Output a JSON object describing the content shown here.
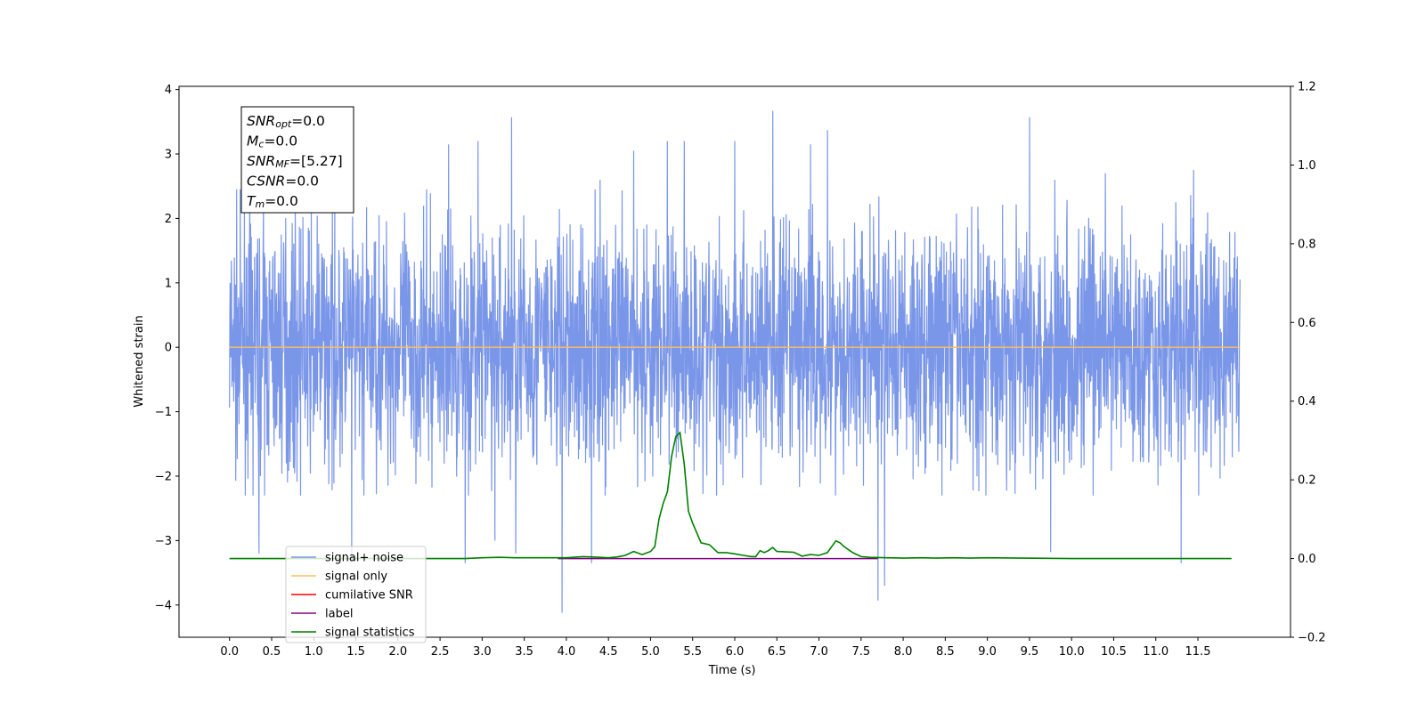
{
  "chart_data": {
    "type": "line",
    "xlabel": "Time (s)",
    "ylabel": "Whitened strain",
    "xlim": [
      -0.6,
      12.6
    ],
    "ylim": [
      -4.5,
      4.05
    ],
    "y2lim": [
      -0.2,
      1.2
    ],
    "xticks": [
      "0.0",
      "0.5",
      "1.0",
      "1.5",
      "2.0",
      "2.5",
      "3.0",
      "3.5",
      "4.0",
      "4.5",
      "5.0",
      "5.5",
      "6.0",
      "6.5",
      "7.0",
      "7.5",
      "8.0",
      "8.5",
      "9.0",
      "9.5",
      "10.0",
      "10.5",
      "11.0",
      "11.5"
    ],
    "yticks": [
      "4",
      "3",
      "2",
      "1",
      "0",
      "−1",
      "−2",
      "−3",
      "−4"
    ],
    "y2ticks": [
      "1.2",
      "1.0",
      "0.8",
      "0.6",
      "0.4",
      "0.2",
      "0.0",
      "−0.2"
    ],
    "grid": false,
    "legend_position": "lower-left",
    "series": [
      {
        "name": "signal+ noise",
        "color": "#7a96e8",
        "axis": "left",
        "x_range": [
          0.0,
          12.0
        ],
        "description_values": "noise band approx ±2, peaks to 3.6 / -4.1",
        "peaks": [
          {
            "x": 1.25,
            "y": 2.4
          },
          {
            "x": 2.6,
            "y": 3.15
          },
          {
            "x": 2.95,
            "y": 3.2
          },
          {
            "x": 3.35,
            "y": 3.57
          },
          {
            "x": 4.4,
            "y": 2.6
          },
          {
            "x": 4.8,
            "y": 3.05
          },
          {
            "x": 5.2,
            "y": 3.2
          },
          {
            "x": 5.4,
            "y": 3.2
          },
          {
            "x": 6.0,
            "y": 3.2
          },
          {
            "x": 6.45,
            "y": 3.67
          },
          {
            "x": 6.9,
            "y": 3.15
          },
          {
            "x": 7.1,
            "y": 3.37
          },
          {
            "x": 9.5,
            "y": 3.57
          },
          {
            "x": 9.8,
            "y": 2.6
          },
          {
            "x": 10.4,
            "y": 2.7
          },
          {
            "x": 10.6,
            "y": 2.2
          },
          {
            "x": 11.3,
            "y": 2.7
          },
          {
            "x": 11.45,
            "y": 2.75
          }
        ],
        "troughs": [
          {
            "x": 0.35,
            "y": -3.2
          },
          {
            "x": 1.45,
            "y": -3.3
          },
          {
            "x": 2.8,
            "y": -3.35
          },
          {
            "x": 3.15,
            "y": -3.0
          },
          {
            "x": 3.4,
            "y": -3.2
          },
          {
            "x": 3.95,
            "y": -4.12
          },
          {
            "x": 4.3,
            "y": -3.35
          },
          {
            "x": 7.7,
            "y": -3.93
          },
          {
            "x": 7.78,
            "y": -3.7
          },
          {
            "x": 9.75,
            "y": -3.18
          },
          {
            "x": 11.3,
            "y": -3.35
          }
        ]
      },
      {
        "name": "signal only",
        "color": "#ffbd5c",
        "axis": "left",
        "x": [
          0.0,
          12.0
        ],
        "y": [
          0.0,
          0.0
        ]
      },
      {
        "name": "cumilative SNR",
        "color": "#ff0000",
        "axis": "left",
        "x": [],
        "y": []
      },
      {
        "name": "label",
        "color": "#800080",
        "axis": "right",
        "x": [
          3.9,
          7.7
        ],
        "y": [
          0.0,
          0.0
        ]
      },
      {
        "name": "signal statistics",
        "color": "#008000",
        "axis": "right",
        "x": [
          0.0,
          2.8,
          3.0,
          3.2,
          3.4,
          3.6,
          3.8,
          4.0,
          4.2,
          4.3,
          4.4,
          4.5,
          4.6,
          4.7,
          4.8,
          4.9,
          5.0,
          5.05,
          5.1,
          5.15,
          5.2,
          5.25,
          5.3,
          5.35,
          5.4,
          5.45,
          5.5,
          5.6,
          5.7,
          5.8,
          5.9,
          6.0,
          6.1,
          6.2,
          6.25,
          6.3,
          6.35,
          6.4,
          6.45,
          6.5,
          6.6,
          6.7,
          6.8,
          6.9,
          7.0,
          7.1,
          7.2,
          7.25,
          7.3,
          7.4,
          7.5,
          7.6,
          7.8,
          8.0,
          8.2,
          8.4,
          8.6,
          8.8,
          9.0,
          9.4,
          10.0,
          11.0,
          11.9
        ],
        "y": [
          0.0,
          0.0,
          0.002,
          0.003,
          0.002,
          0.002,
          0.002,
          0.002,
          0.005,
          0.004,
          0.003,
          0.002,
          0.004,
          0.008,
          0.018,
          0.01,
          0.018,
          0.03,
          0.1,
          0.14,
          0.17,
          0.26,
          0.31,
          0.32,
          0.24,
          0.12,
          0.09,
          0.04,
          0.035,
          0.015,
          0.015,
          0.012,
          0.008,
          0.005,
          0.005,
          0.02,
          0.015,
          0.02,
          0.028,
          0.018,
          0.017,
          0.016,
          0.006,
          0.01,
          0.008,
          0.015,
          0.045,
          0.04,
          0.03,
          0.015,
          0.005,
          0.003,
          0.002,
          0.001,
          0.002,
          0.001,
          0.002,
          0.001,
          0.002,
          0.001,
          0.0,
          0.0,
          0.0
        ]
      }
    ],
    "annotation_box": {
      "lines": [
        {
          "main": "SNR",
          "sub": "opt",
          "rest": "=0.0"
        },
        {
          "main": "M",
          "sub": "c",
          "rest": "=0.0"
        },
        {
          "main": "SNR",
          "sub": "MF",
          "rest": "=[5.27]"
        },
        {
          "main": "CSNR",
          "sub": "",
          "rest": "=0.0"
        },
        {
          "main": "T",
          "sub": "m",
          "rest": "=0.0"
        }
      ]
    },
    "legend": [
      {
        "label": "signal+ noise",
        "color": "#7a96e8"
      },
      {
        "label": "signal only",
        "color": "#ffbd5c"
      },
      {
        "label": "cumilative SNR",
        "color": "#ff0000"
      },
      {
        "label": "label",
        "color": "#800080"
      },
      {
        "label": "signal statistics",
        "color": "#008000"
      }
    ]
  }
}
